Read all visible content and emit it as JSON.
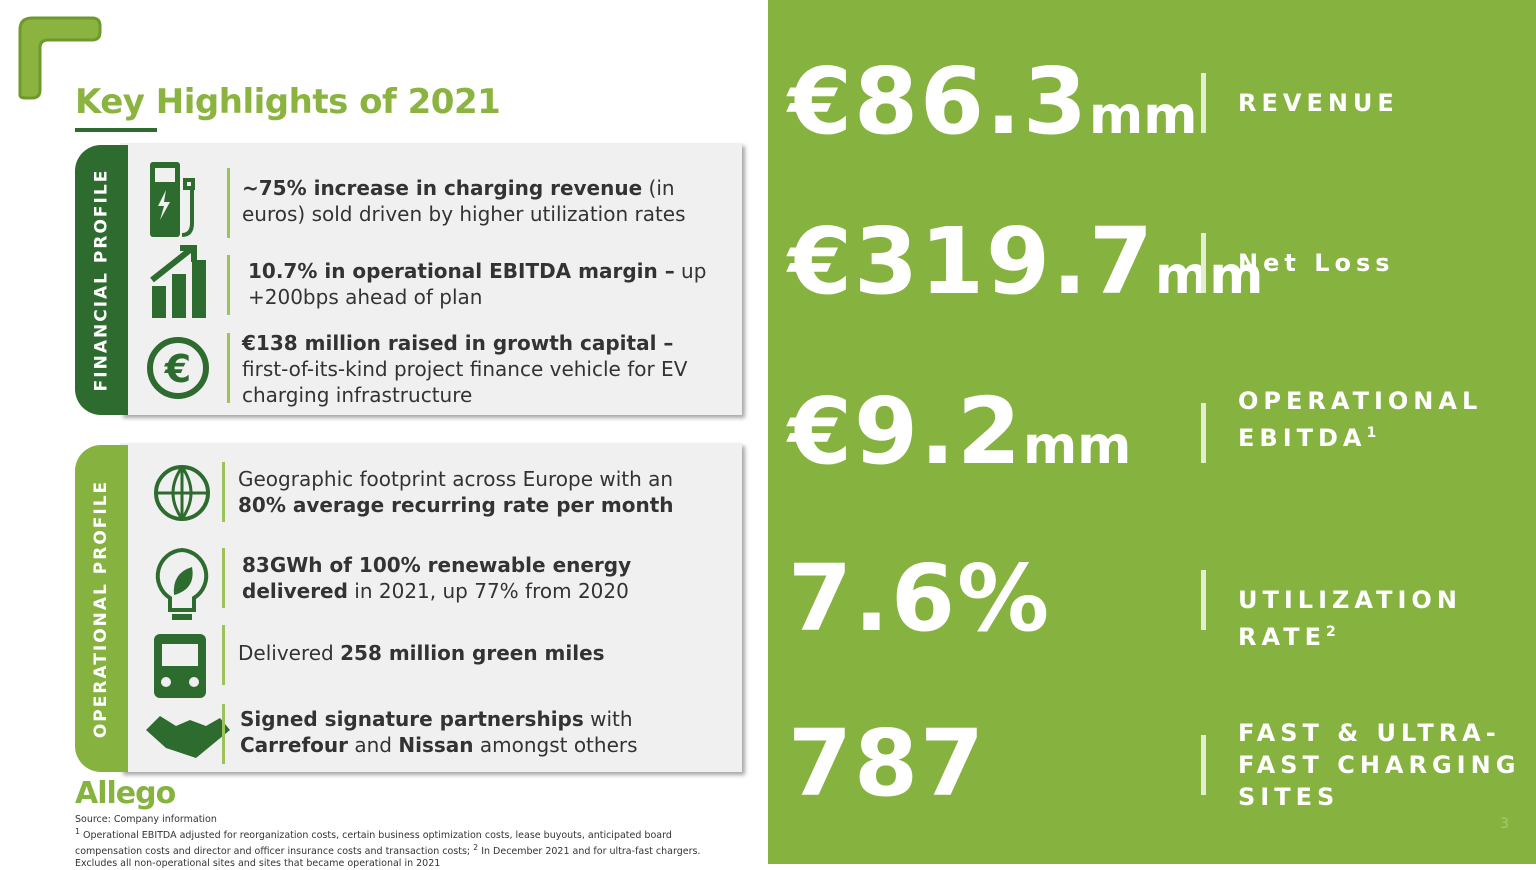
{
  "header": {
    "title": "Key Highlights of 2021"
  },
  "financial_profile": {
    "label": "FINANCIAL PROFILE",
    "items": [
      {
        "runs": [
          {
            "text": "~75% increase in charging revenue",
            "bold": true
          },
          {
            "text": " (in euros) sold driven by higher utilization rates",
            "bold": false
          }
        ]
      },
      {
        "runs": [
          {
            "text": "10.7% in operational EBITDA margin –",
            "bold": true
          },
          {
            "text": " up +200bps ahead of plan",
            "bold": false
          }
        ]
      },
      {
        "runs": [
          {
            "text": "€138 million raised in growth capital –",
            "bold": true
          },
          {
            "text": " first-of-its-kind project finance vehicle for EV charging infrastructure",
            "bold": false
          }
        ]
      }
    ]
  },
  "operational_profile": {
    "label": "OPERATIONAL PROFILE",
    "items": [
      {
        "runs": [
          {
            "text": "Geographic footprint across Europe with an ",
            "bold": false
          },
          {
            "text": "80% average recurring rate per month",
            "bold": true
          }
        ]
      },
      {
        "runs": [
          {
            "text": "83GWh of 100% renewable energy delivered",
            "bold": true
          },
          {
            "text": " in 2021, up 77% from 2020",
            "bold": false
          }
        ]
      },
      {
        "runs": [
          {
            "text": "Delivered ",
            "bold": false
          },
          {
            "text": "258 million green miles",
            "bold": true
          }
        ]
      },
      {
        "runs": [
          {
            "text": "Signed signature partnerships",
            "bold": true
          },
          {
            "text": " with ",
            "bold": false
          },
          {
            "text": "Carrefour",
            "bold": true
          },
          {
            "text": " and ",
            "bold": false
          },
          {
            "text": "Nissan",
            "bold": true
          },
          {
            "text": " amongst others",
            "bold": false
          }
        ]
      }
    ]
  },
  "metrics": [
    {
      "value": "€86.3",
      "unit": "mm",
      "label": "REVENUE",
      "note": null
    },
    {
      "value": "€319.7",
      "unit": "mm",
      "label": "Net Loss",
      "note": null
    },
    {
      "value": "€9.2",
      "unit": "mm",
      "label": "OPERATIONAL EBITDA",
      "note": "1"
    },
    {
      "value": "7.6%",
      "unit": null,
      "label": "UTILIZATION RATE",
      "note": "2"
    },
    {
      "value": "787",
      "unit": null,
      "label": "FAST & ULTRA-FAST CHARGING SITES",
      "note": null
    }
  ],
  "footer": {
    "logo": "Allego",
    "source": "Source: Company information",
    "notes": [
      {
        "mark": "1",
        "text": " Operational EBITDA adjusted for reorganization costs, certain business optimization costs, lease buyouts, anticipated board compensation costs and director and officer insurance costs and transaction costs; "
      },
      {
        "mark": "2",
        "text": " In December 2021 and for ultra-fast chargers. Excludes all non-operational sites and sites that became operational in 2021"
      }
    ],
    "page": "3"
  }
}
